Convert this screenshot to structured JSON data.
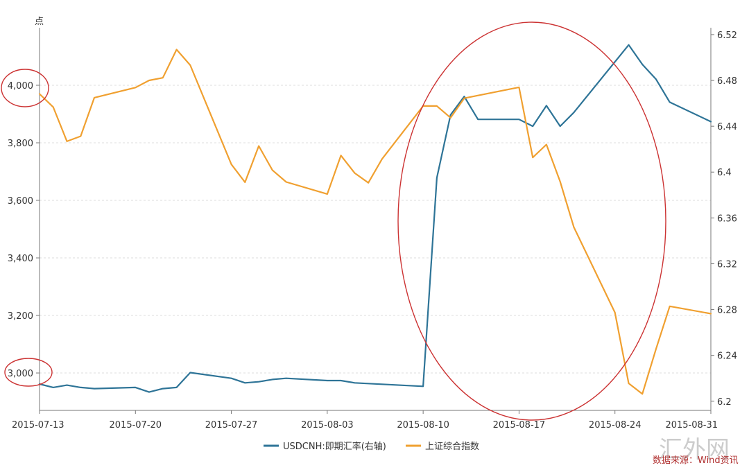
{
  "chart_data": {
    "type": "line",
    "y_left_unit": "点",
    "y_left_ticks": [
      "3,000",
      "3,200",
      "3,400",
      "3,600",
      "3,800",
      "4,000"
    ],
    "y_left_range": [
      2870,
      4200
    ],
    "y_right_ticks": [
      "6.2",
      "6.24",
      "6.28",
      "6.32",
      "6.36",
      "6.4",
      "6.44",
      "6.48",
      "6.52"
    ],
    "y_right_range": [
      6.192,
      6.526
    ],
    "x_ticks": [
      "2015-07-13",
      "2015-07-20",
      "2015-07-27",
      "2015-08-03",
      "2015-08-10",
      "2015-08-17",
      "2015-08-24",
      "2015-08-31"
    ],
    "x_range": [
      "2015-07-13",
      "2015-08-31"
    ],
    "grid": true,
    "legend_position": "bottom",
    "series": [
      {
        "name": "USDCNH:即期汇率(右轴)",
        "axis": "right",
        "color": "#2e7497",
        "points": [
          [
            "2015-07-13",
            6.215
          ],
          [
            "2015-07-14",
            6.212
          ],
          [
            "2015-07-15",
            6.214
          ],
          [
            "2015-07-16",
            6.212
          ],
          [
            "2015-07-17",
            6.211
          ],
          [
            "2015-07-20",
            6.212
          ],
          [
            "2015-07-21",
            6.208
          ],
          [
            "2015-07-22",
            6.211
          ],
          [
            "2015-07-23",
            6.212
          ],
          [
            "2015-07-24",
            6.225
          ],
          [
            "2015-07-27",
            6.22
          ],
          [
            "2015-07-28",
            6.216
          ],
          [
            "2015-07-29",
            6.217
          ],
          [
            "2015-07-30",
            6.219
          ],
          [
            "2015-07-31",
            6.22
          ],
          [
            "2015-08-03",
            6.218
          ],
          [
            "2015-08-04",
            6.218
          ],
          [
            "2015-08-05",
            6.216
          ],
          [
            "2015-08-10",
            6.213
          ],
          [
            "2015-08-11",
            6.395
          ],
          [
            "2015-08-12",
            6.45
          ],
          [
            "2015-08-13",
            6.466
          ],
          [
            "2015-08-14",
            6.446
          ],
          [
            "2015-08-17",
            6.446
          ],
          [
            "2015-08-18",
            6.44
          ],
          [
            "2015-08-19",
            6.458
          ],
          [
            "2015-08-20",
            6.44
          ],
          [
            "2015-08-21",
            6.452
          ],
          [
            "2015-08-25",
            6.511
          ],
          [
            "2015-08-26",
            6.494
          ],
          [
            "2015-08-27",
            6.481
          ],
          [
            "2015-08-28",
            6.461
          ],
          [
            "2015-08-31",
            6.444
          ]
        ]
      },
      {
        "name": "上证综合指数",
        "axis": "left",
        "color": "#f0a030",
        "points": [
          [
            "2015-07-13",
            3970
          ],
          [
            "2015-07-14",
            3924
          ],
          [
            "2015-07-15",
            3805
          ],
          [
            "2015-07-16",
            3823
          ],
          [
            "2015-07-17",
            3957
          ],
          [
            "2015-07-20",
            3992
          ],
          [
            "2015-07-21",
            4017
          ],
          [
            "2015-07-22",
            4026
          ],
          [
            "2015-07-23",
            4124
          ],
          [
            "2015-07-24",
            4070
          ],
          [
            "2015-07-27",
            3725
          ],
          [
            "2015-07-28",
            3663
          ],
          [
            "2015-07-29",
            3789
          ],
          [
            "2015-07-30",
            3705
          ],
          [
            "2015-07-31",
            3664
          ],
          [
            "2015-08-03",
            3622
          ],
          [
            "2015-08-04",
            3756
          ],
          [
            "2015-08-05",
            3695
          ],
          [
            "2015-08-06",
            3661
          ],
          [
            "2015-08-07",
            3744
          ],
          [
            "2015-08-10",
            3928
          ],
          [
            "2015-08-11",
            3928
          ],
          [
            "2015-08-12",
            3887
          ],
          [
            "2015-08-13",
            3955
          ],
          [
            "2015-08-17",
            3993
          ],
          [
            "2015-08-18",
            3749
          ],
          [
            "2015-08-19",
            3794
          ],
          [
            "2015-08-20",
            3665
          ],
          [
            "2015-08-21",
            3507
          ],
          [
            "2015-08-24",
            3210
          ],
          [
            "2015-08-25",
            2964
          ],
          [
            "2015-08-26",
            2927
          ],
          [
            "2015-08-27",
            3084
          ],
          [
            "2015-08-28",
            3232
          ],
          [
            "2015-08-31",
            3206
          ]
        ]
      }
    ]
  },
  "footer": {
    "source_text": "数据来源：Wind资讯",
    "watermark_text": "汇外网"
  }
}
